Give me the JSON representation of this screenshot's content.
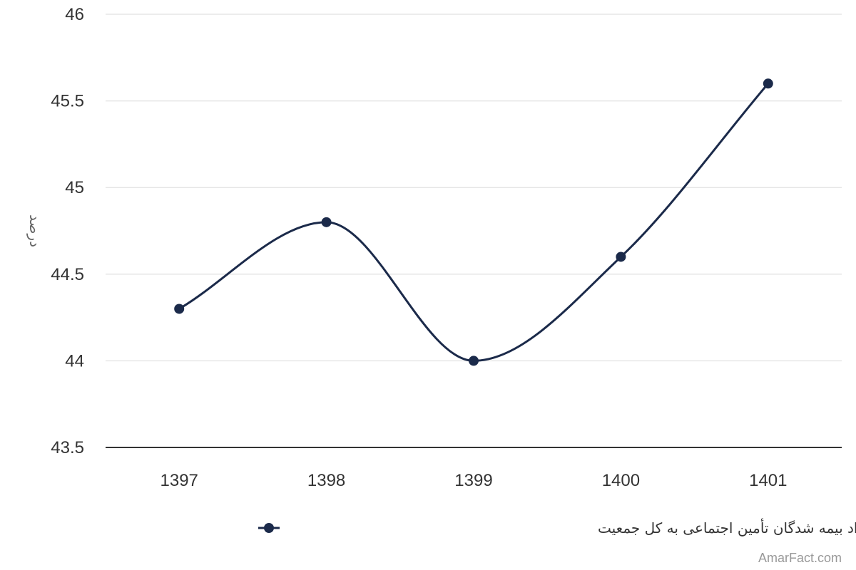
{
  "chart_data": {
    "type": "line",
    "categories": [
      "1397",
      "1398",
      "1399",
      "1400",
      "1401"
    ],
    "series": [
      {
        "name": "نسبت تعداد بیمه شدگان تأمین اجتماعی به کل جمعیت",
        "values": [
          44.3,
          44.8,
          44.0,
          44.6,
          45.6
        ],
        "color": "#1b2a4a"
      }
    ],
    "ylabel": "درصد",
    "ylim": [
      43.5,
      46
    ],
    "yticks": [
      "43.5",
      "44",
      "44.5",
      "45",
      "45.5",
      "46"
    ],
    "grid": true,
    "smooth": true,
    "legend_position": "bottom"
  },
  "credit": "AmarFact.com",
  "colors": {
    "series": "#1b2a4a",
    "grid": "#e6e6e6",
    "axis": "#333333"
  }
}
